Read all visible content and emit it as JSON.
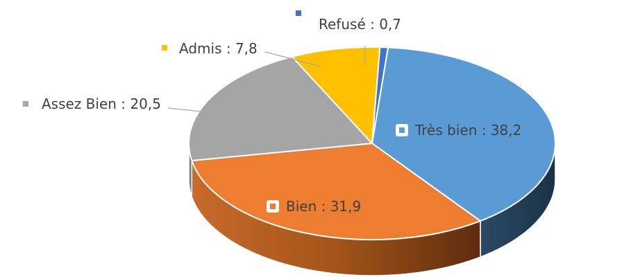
{
  "chart_data": {
    "type": "pie",
    "style": "3d",
    "title": "",
    "slices": [
      {
        "label": "Très bien",
        "value": 38.2,
        "text": "Très bien : 38,2",
        "color": "#5b9bd5",
        "side": "#203a52"
      },
      {
        "label": "Bien",
        "value": 31.9,
        "text": "Bien : 31,9",
        "color": "#ed7d31",
        "side": "#a54e19"
      },
      {
        "label": "Assez Bien",
        "value": 20.5,
        "text": "Assez Bien : 20,5",
        "color": "#a5a5a5",
        "side": "#6e6e6e"
      },
      {
        "label": "Admis",
        "value": 7.8,
        "text": "Admis : 7,8",
        "color": "#ffc000",
        "side": "#a67c00"
      },
      {
        "label": "Refusé",
        "value": 0.7,
        "text": "Refusé : 0,7",
        "color": "#4472c4",
        "side": "#2a4a80"
      }
    ],
    "legend": "none",
    "data_labels": "category-and-value"
  }
}
